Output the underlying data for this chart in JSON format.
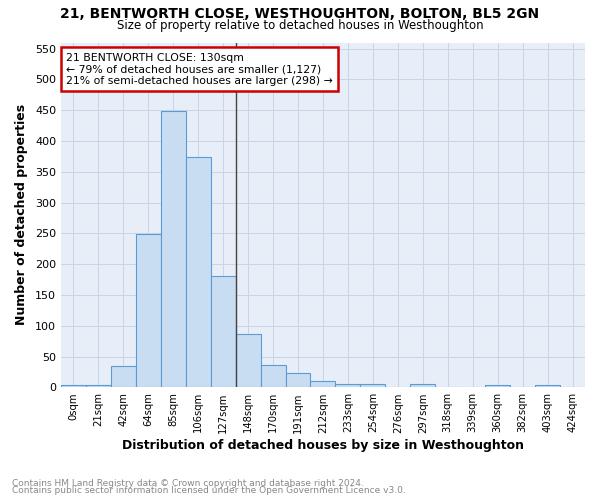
{
  "title": "21, BENTWORTH CLOSE, WESTHOUGHTON, BOLTON, BL5 2GN",
  "subtitle": "Size of property relative to detached houses in Westhoughton",
  "xlabel": "Distribution of detached houses by size in Westhoughton",
  "ylabel": "Number of detached properties",
  "footnote1": "Contains HM Land Registry data © Crown copyright and database right 2024.",
  "footnote2": "Contains public sector information licensed under the Open Government Licence v3.0.",
  "bar_labels": [
    "0sqm",
    "21sqm",
    "42sqm",
    "64sqm",
    "85sqm",
    "106sqm",
    "127sqm",
    "148sqm",
    "170sqm",
    "191sqm",
    "212sqm",
    "233sqm",
    "254sqm",
    "276sqm",
    "297sqm",
    "318sqm",
    "339sqm",
    "360sqm",
    "382sqm",
    "403sqm",
    "424sqm"
  ],
  "bar_values": [
    3,
    3,
    35,
    249,
    448,
    374,
    180,
    87,
    37,
    23,
    11,
    5,
    5,
    0,
    5,
    0,
    0,
    3,
    0,
    3,
    0
  ],
  "bar_color": "#c9ddf2",
  "bar_edge_color": "#5b9bd5",
  "grid_color": "#c8d4e8",
  "background_color": "#e8eef8",
  "vline_color": "#444444",
  "annotation_text": "21 BENTWORTH CLOSE: 130sqm\n← 79% of detached houses are smaller (1,127)\n21% of semi-detached houses are larger (298) →",
  "annotation_box_edge": "#cc0000",
  "ylim": [
    0,
    560
  ],
  "yticks": [
    0,
    50,
    100,
    150,
    200,
    250,
    300,
    350,
    400,
    450,
    500,
    550
  ]
}
